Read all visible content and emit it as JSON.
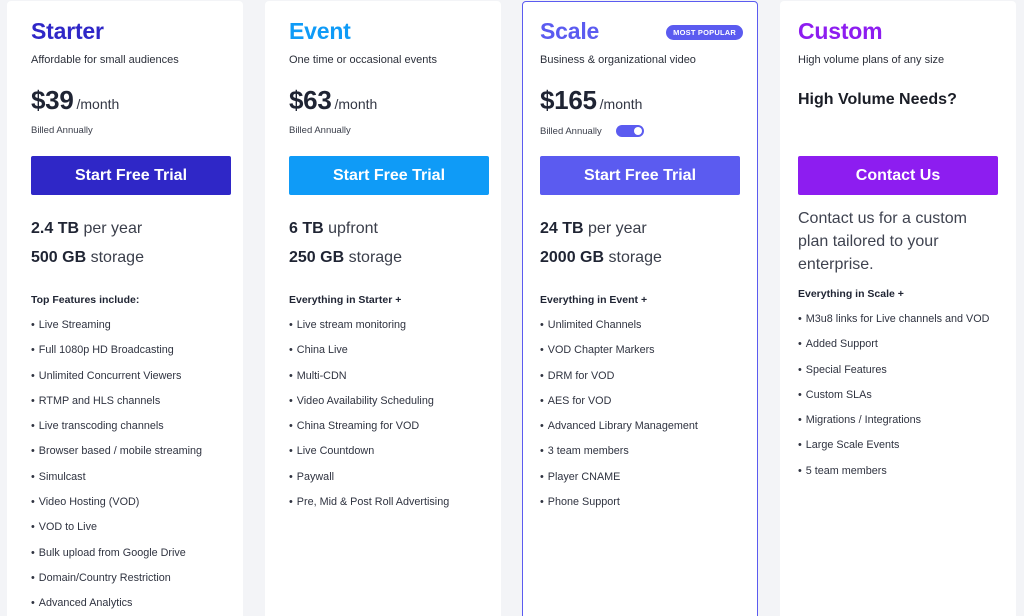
{
  "colors": {
    "starter": "#2f27c7",
    "event": "#0f9bf7",
    "scale": "#5b5bf0",
    "custom": "#8d1df0"
  },
  "plans": [
    {
      "title": "Starter",
      "subtitle": "Affordable for small audiences",
      "price": "$39",
      "per": "/month",
      "billed": "Billed Annually",
      "cta": "Start Free Trial",
      "spec1_bold": "2.4 TB",
      "spec1_rest": "per year",
      "spec2_bold": "500 GB",
      "spec2_rest": "storage",
      "features_heading": "Top Features include:",
      "features": [
        "Live Streaming",
        "Full 1080p HD Broadcasting",
        "Unlimited Concurrent Viewers",
        "RTMP and HLS channels",
        "Live transcoding channels",
        "Browser based / mobile streaming",
        "Simulcast",
        "Video Hosting (VOD)",
        "VOD to Live",
        "Bulk upload from Google Drive",
        "Domain/Country Restriction",
        "Advanced Analytics"
      ]
    },
    {
      "title": "Event",
      "subtitle": "One time or occasional events",
      "price": "$63",
      "per": "/month",
      "billed": "Billed Annually",
      "cta": "Start Free Trial",
      "spec1_bold": "6 TB",
      "spec1_rest": "upfront",
      "spec2_bold": "250 GB",
      "spec2_rest": "storage",
      "features_heading": "Everything in Starter +",
      "features": [
        "Live stream monitoring",
        "China Live",
        "Multi-CDN",
        "Video Availability Scheduling",
        "China Streaming for VOD",
        "Live Countdown",
        "Paywall",
        "Pre, Mid & Post Roll Advertising"
      ]
    },
    {
      "title": "Scale",
      "badge": "MOST POPULAR",
      "subtitle": "Business & organizational video",
      "price": "$165",
      "per": "/month",
      "billed": "Billed Annually",
      "billing_toggle_on": true,
      "cta": "Start Free Trial",
      "spec1_bold": "24 TB",
      "spec1_rest": "per year",
      "spec2_bold": "2000 GB",
      "spec2_rest": "storage",
      "features_heading": "Everything in Event +",
      "features": [
        "Unlimited Channels",
        "VOD Chapter Markers",
        "DRM for VOD",
        "AES for VOD",
        "Advanced Library Management",
        "3 team members",
        "Player CNAME",
        "Phone Support"
      ]
    },
    {
      "title": "Custom",
      "subtitle": "High volume plans of any size",
      "heading": "High Volume Needs?",
      "cta": "Contact Us",
      "description": "Contact us for a custom plan tailored to your enterprise.",
      "features_heading": "Everything in Scale +",
      "features": [
        "M3u8 links for Live channels and VOD",
        "Added Support",
        "Special Features",
        "Custom SLAs",
        "Migrations / Integrations",
        "Large Scale Events",
        "5 team members"
      ]
    }
  ]
}
